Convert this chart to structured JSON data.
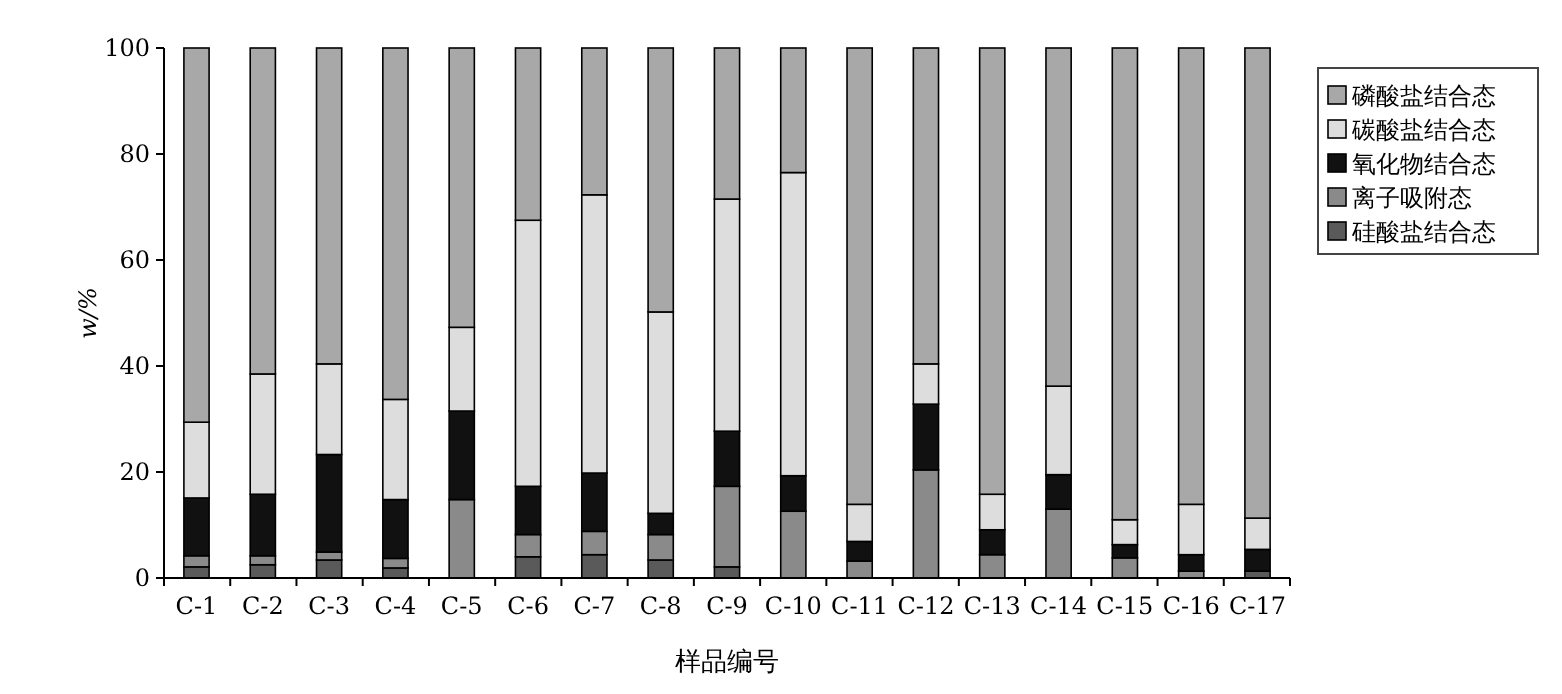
{
  "chart_data": {
    "type": "bar",
    "stacked": true,
    "xlabel": "样品编号",
    "ylabel": "w/%",
    "categories": [
      "C-1",
      "C-2",
      "C-3",
      "C-4",
      "C-5",
      "C-6",
      "C-7",
      "C-8",
      "C-9",
      "C-10",
      "C-11",
      "C-12",
      "C-13",
      "C-14",
      "C-15",
      "C-16",
      "C-17"
    ],
    "ylim": [
      0,
      100
    ],
    "yticks": [
      0,
      20,
      40,
      60,
      80,
      100
    ],
    "legend": "right",
    "grid": false,
    "series": [
      {
        "name": "硅酸盐结合态",
        "color": "#5a5a5a",
        "values": [
          2.1,
          2.5,
          3.4,
          1.9,
          0,
          4.0,
          4.4,
          3.4,
          2.1,
          0,
          0,
          0,
          null,
          0,
          null,
          0,
          1.3
        ]
      },
      {
        "name": "离子吸附态",
        "color": "#8a8a8a",
        "values": [
          2.1,
          1.7,
          1.5,
          1.8,
          14.8,
          4.2,
          4.4,
          4.8,
          15.2,
          12.6,
          3.2,
          20.4,
          4.4,
          13.0,
          3.8,
          1.3,
          null
        ]
      },
      {
        "name": "氧化物结合态",
        "color": "#111111",
        "values": [
          10.9,
          11.6,
          18.4,
          11.1,
          16.7,
          9.1,
          11.0,
          4.0,
          10.4,
          6.7,
          3.7,
          12.4,
          4.7,
          6.5,
          2.5,
          3.1,
          4.1
        ]
      },
      {
        "name": "碳酸盐结合态",
        "color": "#dddddd",
        "values": [
          14.3,
          22.7,
          17.1,
          18.9,
          15.8,
          50.2,
          52.5,
          38.0,
          43.8,
          57.2,
          7.0,
          7.6,
          6.7,
          16.7,
          4.7,
          9.5,
          5.9
        ]
      },
      {
        "name": "磷酸盐结合态",
        "color": "#a8a8a8",
        "values": [
          70.6,
          61.5,
          59.6,
          66.3,
          52.7,
          32.5,
          27.7,
          49.8,
          28.5,
          23.5,
          86.1,
          59.6,
          84.2,
          63.8,
          89.0,
          86.1,
          88.7
        ]
      }
    ]
  }
}
